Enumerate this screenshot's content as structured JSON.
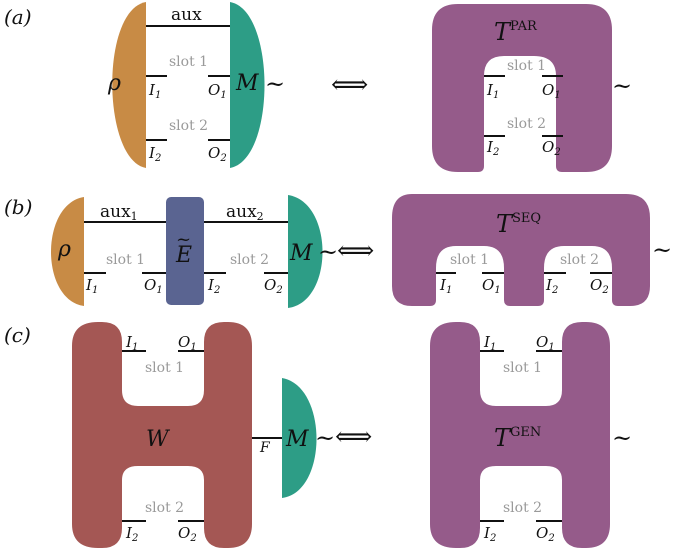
{
  "colors": {
    "rho": "#c88b45",
    "measure": "#2d9d86",
    "tester": "#955b8a",
    "channel": "#5a6491",
    "comb": "#a45754",
    "wire": "#111111",
    "slot_text": "#9a9a9a"
  },
  "panel_a": {
    "label": "(a)",
    "state": "ρ",
    "measurement": "M",
    "aux": "aux",
    "slot1": "slot 1",
    "slot2": "slot 2",
    "in1": "I",
    "in1_sub": "1",
    "out1": "O",
    "out1_sub": "1",
    "in2": "I",
    "in2_sub": "2",
    "out2": "O",
    "out2_sub": "2",
    "tilde": "~",
    "iff": "⟺",
    "tester": "T",
    "tester_sup": "PAR"
  },
  "panel_b": {
    "label": "(b)",
    "state": "ρ",
    "channel": "E",
    "channel_tilde": "~",
    "measurement": "M",
    "aux1": "aux",
    "aux1_sub": "1",
    "aux2": "aux",
    "aux2_sub": "2",
    "slot1": "slot 1",
    "slot2": "slot 2",
    "in1": "I",
    "in1_sub": "1",
    "out1": "O",
    "out1_sub": "1",
    "in2": "I",
    "in2_sub": "2",
    "out2": "O",
    "out2_sub": "2",
    "tilde": "~",
    "iff": "⟺",
    "tester": "T",
    "tester_sup": "SEQ"
  },
  "panel_c": {
    "label": "(c)",
    "comb": "W",
    "measurement": "M",
    "wire_f": "F",
    "slot1": "slot 1",
    "slot2": "slot 2",
    "in1": "I",
    "in1_sub": "1",
    "out1": "O",
    "out1_sub": "1",
    "in2": "I",
    "in2_sub": "2",
    "out2": "O",
    "out2_sub": "2",
    "tilde": "~",
    "iff": "⟺",
    "tester": "T",
    "tester_sup": "GEN"
  }
}
